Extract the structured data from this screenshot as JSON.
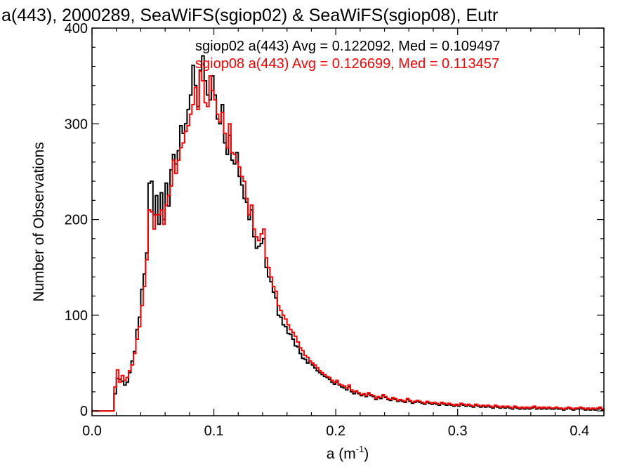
{
  "chart_data": {
    "type": "histogram-step",
    "title": "a(443), 2000289, SeaWiFS(sgiop02) & SeaWiFS(sgiop08), Eutr",
    "xlabel_main": "a (m",
    "xlabel_sup": "-1",
    "xlabel_close": ")",
    "ylabel": "Number of Observations",
    "xlim": [
      0.0,
      0.42
    ],
    "ylim": [
      -5,
      400
    ],
    "x_ticks": [
      {
        "value": 0.0,
        "label": "0.0"
      },
      {
        "value": 0.1,
        "label": "0.1"
      },
      {
        "value": 0.2,
        "label": "0.2"
      },
      {
        "value": 0.3,
        "label": "0.3"
      },
      {
        "value": 0.4,
        "label": "0.4"
      }
    ],
    "y_ticks": [
      {
        "value": 0,
        "label": "0"
      },
      {
        "value": 100,
        "label": "100"
      },
      {
        "value": 200,
        "label": "200"
      },
      {
        "value": 300,
        "label": "300"
      },
      {
        "value": 400,
        "label": "400"
      }
    ],
    "bin_start": 0.0,
    "bin_width": 0.002,
    "series": [
      {
        "name": "sgiop02",
        "color": "#000000",
        "legend": "sgiop02 a(443) Avg = 0.122092, Med = 0.109497",
        "values": [
          0,
          0,
          0,
          0,
          0,
          0,
          0,
          0,
          0,
          18,
          34,
          33,
          31,
          27,
          30,
          40,
          52,
          62,
          85,
          98,
          127,
          143,
          165,
          238,
          240,
          205,
          225,
          195,
          228,
          200,
          238,
          214,
          252,
          268,
          258,
          272,
          298,
          290,
          300,
          315,
          330,
          361,
          340,
          318,
          356,
          371,
          345,
          330,
          325,
          350,
          330,
          305,
          300,
          320,
          280,
          268,
          288,
          262,
          258,
          270,
          245,
          236,
          222,
          218,
          200,
          210,
          182,
          170,
          172,
          175,
          180,
          150,
          140,
          135,
          124,
          118,
          100,
          98,
          90,
          88,
          81,
          80,
          75,
          68,
          67,
          60,
          55,
          54,
          50,
          52,
          48,
          45,
          42,
          40,
          38,
          36,
          35,
          33,
          30,
          28,
          30,
          27,
          25,
          24,
          22,
          25,
          20,
          18,
          20,
          18,
          16,
          17,
          15,
          18,
          16,
          15,
          12,
          14,
          13,
          16,
          14,
          12,
          11,
          13,
          12,
          10,
          11,
          10,
          9,
          12,
          10,
          8,
          9,
          10,
          9,
          8,
          7,
          9,
          8,
          7,
          8,
          7,
          6,
          8,
          7,
          6,
          7,
          6,
          5,
          6,
          5,
          7,
          6,
          5,
          6,
          5,
          4,
          6,
          5,
          4,
          5,
          4,
          5,
          4,
          3,
          5,
          4,
          3,
          4,
          3,
          4,
          3,
          2,
          4,
          3,
          2,
          3,
          2,
          3,
          2,
          3,
          4,
          2,
          3,
          2,
          3,
          2,
          3,
          2,
          2,
          3,
          2,
          2,
          1,
          2,
          3,
          2,
          1,
          2,
          2,
          3,
          2,
          1,
          2,
          1,
          2,
          1,
          2,
          3,
          1,
          2
        ]
      },
      {
        "name": "sgiop08",
        "color": "#ff0000",
        "legend": "sgiop08 a(443) Avg = 0.126699, Med = 0.113457",
        "values": [
          0,
          0,
          0,
          0,
          0,
          0,
          0,
          0,
          0,
          25,
          43,
          30,
          37,
          32,
          35,
          42,
          48,
          60,
          75,
          88,
          110,
          130,
          158,
          210,
          208,
          190,
          205,
          205,
          210,
          195,
          215,
          225,
          235,
          262,
          248,
          262,
          275,
          280,
          292,
          298,
          310,
          320,
          338,
          315,
          355,
          345,
          322,
          318,
          350,
          335,
          325,
          310,
          302,
          312,
          290,
          275,
          300,
          270,
          268,
          260,
          255,
          245,
          240,
          222,
          205,
          215,
          190,
          182,
          178,
          185,
          190,
          160,
          150,
          140,
          130,
          125,
          110,
          105,
          100,
          96,
          90,
          85,
          82,
          78,
          72,
          66,
          63,
          58,
          56,
          52,
          50,
          48,
          45,
          42,
          40,
          38,
          36,
          35,
          32,
          30,
          32,
          28,
          27,
          26,
          24,
          27,
          22,
          20,
          21,
          19,
          17,
          18,
          16,
          19,
          17,
          16,
          13,
          15,
          14,
          17,
          15,
          13,
          12,
          14,
          13,
          11,
          12,
          11,
          10,
          13,
          11,
          9,
          10,
          11,
          10,
          9,
          8,
          10,
          9,
          8,
          9,
          8,
          7,
          9,
          8,
          7,
          8,
          7,
          6,
          7,
          6,
          8,
          7,
          6,
          7,
          6,
          5,
          7,
          6,
          5,
          6,
          5,
          6,
          5,
          4,
          6,
          5,
          4,
          5,
          4,
          5,
          4,
          3,
          5,
          4,
          3,
          4,
          3,
          4,
          3,
          4,
          5,
          3,
          4,
          3,
          4,
          3,
          4,
          3,
          3,
          4,
          3,
          3,
          2,
          3,
          4,
          3,
          2,
          3,
          3,
          4,
          3,
          2,
          3,
          2,
          3,
          2,
          3,
          4,
          2,
          3
        ]
      }
    ]
  }
}
